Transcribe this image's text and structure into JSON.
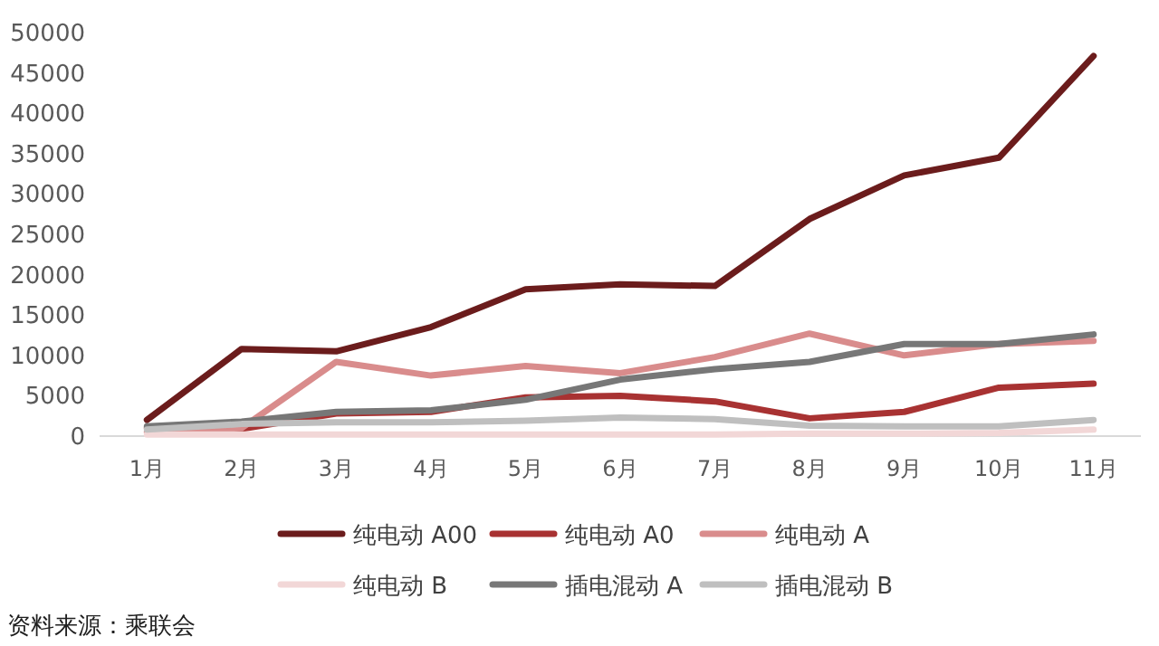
{
  "chart_data": {
    "type": "line",
    "categories": [
      "1月",
      "2月",
      "3月",
      "4月",
      "5月",
      "6月",
      "7月",
      "8月",
      "9月",
      "10月",
      "11月"
    ],
    "ylim": [
      0,
      50000
    ],
    "yticks": [
      0,
      5000,
      10000,
      15000,
      20000,
      25000,
      30000,
      35000,
      40000,
      45000,
      50000
    ],
    "grid": false,
    "legend": "bottom",
    "marker": "none",
    "line_style": "solid",
    "series": [
      {
        "name": "纯电动 A00",
        "color": "#6b1c1c",
        "values": [
          2000,
          10800,
          10500,
          13500,
          18200,
          18800,
          18600,
          26900,
          32300,
          34500,
          47100
        ]
      },
      {
        "name": "纯电动 A0",
        "color": "#a83232",
        "values": [
          1000,
          900,
          2800,
          3000,
          4800,
          5000,
          4300,
          2200,
          3000,
          6000,
          6500
        ]
      },
      {
        "name": "纯电动 A",
        "color": "#d98c8c",
        "values": [
          500,
          1000,
          9200,
          7500,
          8700,
          7800,
          9800,
          12700,
          10000,
          11400,
          11800
        ]
      },
      {
        "name": "纯电动 B",
        "color": "#f2d7d7",
        "values": [
          200,
          200,
          200,
          200,
          200,
          200,
          200,
          300,
          300,
          400,
          800
        ]
      },
      {
        "name": "插电混动 A",
        "color": "#777777",
        "values": [
          1200,
          1800,
          3000,
          3200,
          4500,
          7000,
          8300,
          9200,
          11400,
          11400,
          12600
        ]
      },
      {
        "name": "插电混动 B",
        "color": "#bfbfbf",
        "values": [
          800,
          1500,
          1700,
          1700,
          1900,
          2300,
          2100,
          1300,
          1200,
          1200,
          2000
        ]
      }
    ],
    "annotations": [
      "资料来源：乘联会"
    ]
  }
}
